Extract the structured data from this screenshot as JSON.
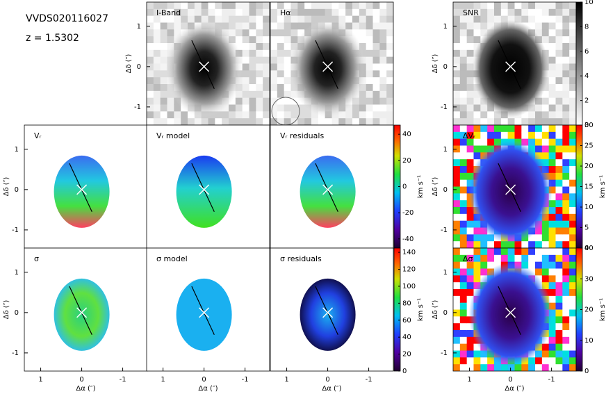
{
  "header": {
    "name": "VVDS020116027",
    "redshift": "z = 1.5302"
  },
  "chart_data": [
    {
      "type": "image",
      "title": "I-Band",
      "xlim": [
        1.4,
        -1.6
      ],
      "ylim": [
        -1.45,
        1.6
      ],
      "yticks": [
        1,
        0,
        -1
      ],
      "ylabel": "Δδ (″)"
    },
    {
      "type": "image",
      "title": "Hα",
      "xlim": [
        1.4,
        -1.6
      ],
      "ylim": [
        -1.45,
        1.6
      ]
    },
    {
      "type": "image",
      "title": "SNR",
      "xlim": [
        1.4,
        -1.6
      ],
      "ylim": [
        -1.45,
        1.6
      ],
      "yticks": [
        1,
        0,
        -1
      ],
      "ylabel": "Δδ (″)"
    },
    {
      "type": "image",
      "title": "Vᵣ",
      "xlim": [
        1.4,
        -1.6
      ],
      "ylim": [
        -1.45,
        1.6
      ],
      "yticks": [
        1,
        0,
        -1
      ],
      "ylabel": "Δδ (″)"
    },
    {
      "type": "image",
      "title": "Vᵣ model",
      "xlim": [
        1.4,
        -1.6
      ],
      "ylim": [
        -1.45,
        1.6
      ]
    },
    {
      "type": "image",
      "title": "Vᵣ residuals",
      "xlim": [
        1.4,
        -1.6
      ],
      "ylim": [
        -1.45,
        1.6
      ]
    },
    {
      "type": "image",
      "title": "ΔVᵣ",
      "xlim": [
        1.4,
        -1.6
      ],
      "ylim": [
        -1.45,
        1.6
      ],
      "yticks": [
        1,
        0,
        -1
      ],
      "ylabel": "Δδ (″)"
    },
    {
      "type": "image",
      "title": "σ",
      "xlim": [
        1.4,
        -1.6
      ],
      "ylim": [
        -1.45,
        1.6
      ],
      "xticks": [
        1,
        0,
        -1
      ],
      "yticks": [
        1,
        0,
        -1
      ],
      "xlabel": "Δα (″)",
      "ylabel": "Δδ (″)"
    },
    {
      "type": "image",
      "title": "σ model",
      "xlim": [
        1.4,
        -1.6
      ],
      "ylim": [
        -1.45,
        1.6
      ],
      "xticks": [
        1,
        0,
        -1
      ],
      "xlabel": "Δα (″)"
    },
    {
      "type": "image",
      "title": "σ residuals",
      "xlim": [
        1.4,
        -1.6
      ],
      "ylim": [
        -1.45,
        1.6
      ],
      "xticks": [
        1,
        0,
        -1
      ],
      "xlabel": "Δα (″)"
    },
    {
      "type": "image",
      "title": "Δσ",
      "xlim": [
        1.4,
        -1.6
      ],
      "ylim": [
        -1.45,
        1.6
      ],
      "xticks": [
        1,
        0,
        -1
      ],
      "yticks": [
        1,
        0,
        -1
      ],
      "xlabel": "Δα (″)",
      "ylabel": "Δδ (″)"
    },
    {
      "type": "colorbar",
      "ylim": [
        0,
        10
      ],
      "yticks": [
        0,
        2,
        4,
        6,
        8,
        10
      ],
      "colormap": "grey"
    },
    {
      "type": "colorbar",
      "ylim": [
        -47,
        47
      ],
      "yticks": [
        -40,
        -20,
        0,
        20,
        40
      ],
      "colormap": "rainbow",
      "ylabel": "km s⁻¹"
    },
    {
      "type": "colorbar",
      "ylim": [
        0,
        145
      ],
      "yticks": [
        0,
        20,
        40,
        60,
        80,
        100,
        120,
        140
      ],
      "colormap": "rainbow",
      "ylabel": "km s⁻¹"
    },
    {
      "type": "colorbar",
      "ylim": [
        0,
        30
      ],
      "yticks": [
        0,
        5,
        10,
        15,
        20,
        25,
        30
      ],
      "colormap": "rainbow",
      "ylabel": "km s⁻¹"
    },
    {
      "type": "colorbar",
      "ylim": [
        0,
        40
      ],
      "yticks": [
        0,
        10,
        20,
        30,
        40
      ],
      "colormap": "rainbow",
      "ylabel": "km s⁻¹"
    }
  ]
}
